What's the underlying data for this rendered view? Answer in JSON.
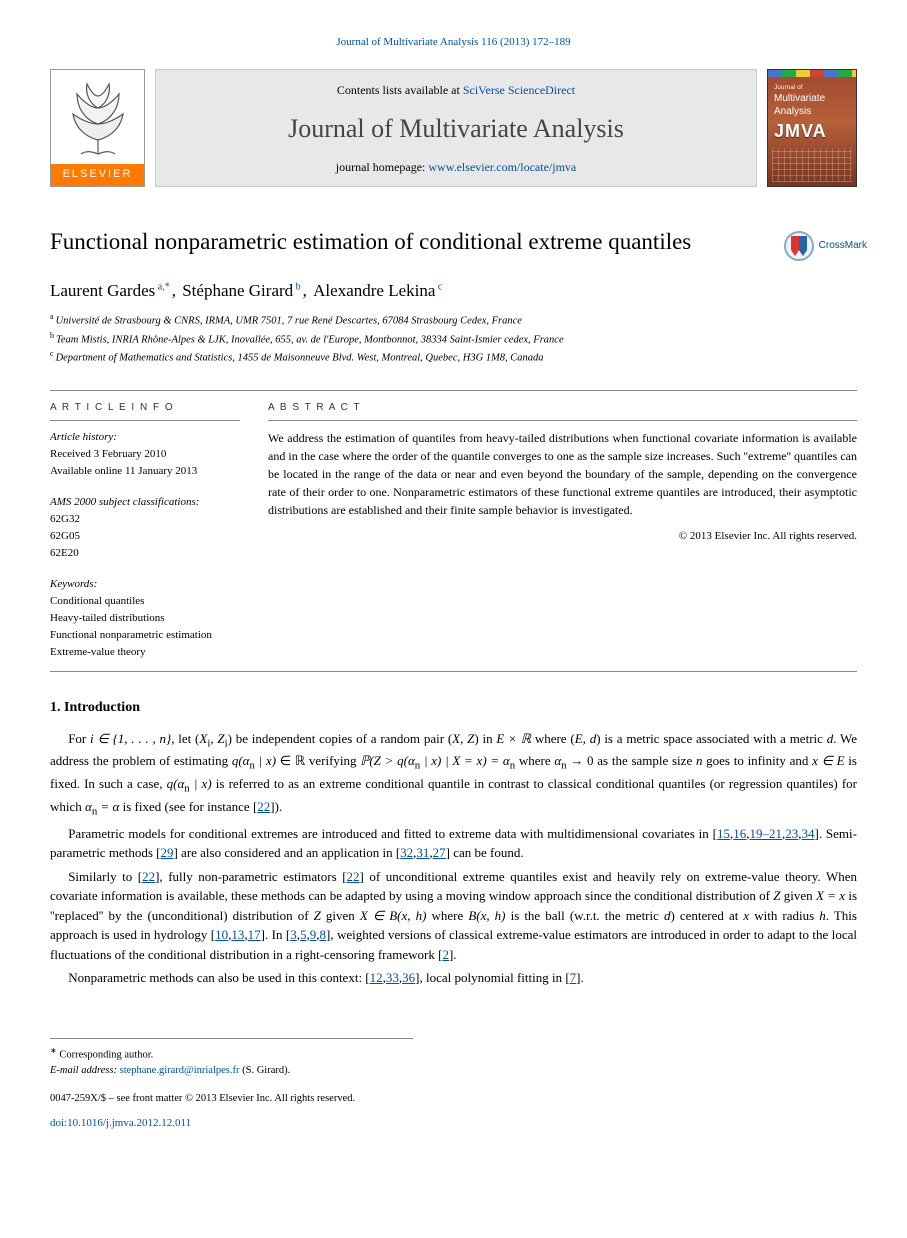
{
  "journal_ref": {
    "prefix": "",
    "link_text": "Journal of Multivariate Analysis 116 (2013) 172–189"
  },
  "header": {
    "contents_prefix": "Contents lists available at ",
    "contents_link": "SciVerse ScienceDirect",
    "journal_title": "Journal of Multivariate Analysis",
    "homepage_prefix": "journal homepage: ",
    "homepage_link": "www.elsevier.com/locate/jmva",
    "elsevier_label": "ELSEVIER",
    "cover_small": "Journal of",
    "cover_line1": "Multivariate",
    "cover_line2": "Analysis",
    "cover_abbrev": "JMVA"
  },
  "crossmark_label": "CrossMark",
  "title": "Functional nonparametric estimation of conditional extreme quantiles",
  "authors": [
    {
      "name": "Laurent Gardes",
      "affs": "a,*"
    },
    {
      "name": "Stéphane Girard",
      "affs": "b"
    },
    {
      "name": "Alexandre Lekina",
      "affs": "c"
    }
  ],
  "affiliations": [
    {
      "lbl": "a",
      "text": "Université de Strasbourg & CNRS, IRMA, UMR 7501, 7 rue René Descartes, 67084 Strasbourg Cedex, France"
    },
    {
      "lbl": "b",
      "text": "Team Mistis, INRIA Rhône-Alpes & LJK, Inovallée, 655, av. de l'Europe, Montbonnot, 38334 Saint-Ismier cedex, France"
    },
    {
      "lbl": "c",
      "text": "Department of Mathematics and Statistics, 1455 de Maisonneuve Blvd. West, Montreal, Quebec, H3G 1M8, Canada"
    }
  ],
  "info": {
    "article_info_label": "A R T I C L E   I N F O",
    "history_label": "Article history:",
    "history": [
      "Received 3 February 2010",
      "Available online 11 January 2013"
    ],
    "ams_label": "AMS 2000 subject classifications:",
    "ams": [
      "62G32",
      "62G05",
      "62E20"
    ],
    "keywords_label": "Keywords:",
    "keywords": [
      "Conditional quantiles",
      "Heavy-tailed distributions",
      "Functional nonparametric estimation",
      "Extreme-value theory"
    ]
  },
  "abstract": {
    "label": "A B S T R A C T",
    "text": "We address the estimation of quantiles from heavy-tailed distributions when functional covariate information is available and in the case where the order of the quantile converges to one as the sample size increases. Such ''extreme'' quantiles can be located in the range of the data or near and even beyond the boundary of the sample, depending on the convergence rate of their order to one. Nonparametric estimators of these functional extreme quantiles are introduced, their asymptotic distributions are established and their finite sample behavior is investigated.",
    "copyright": "© 2013 Elsevier Inc. All rights reserved."
  },
  "section1": {
    "heading": "1. Introduction",
    "paragraphs": [
      {
        "segments": [
          {
            "t": "For "
          },
          {
            "t": "i ∈ {1, . . . , n}",
            "math": true
          },
          {
            "t": ", let ("
          },
          {
            "t": "X",
            "math": true
          },
          {
            "t": "i",
            "sub": true
          },
          {
            "t": ", "
          },
          {
            "t": "Z",
            "math": true
          },
          {
            "t": "i",
            "sub": true
          },
          {
            "t": ") be independent copies of a random pair ("
          },
          {
            "t": "X, Z",
            "math": true
          },
          {
            "t": ") in "
          },
          {
            "t": "E × ℝ",
            "math": true
          },
          {
            "t": " where ("
          },
          {
            "t": "E, d",
            "math": true
          },
          {
            "t": ") is a metric space associated with a metric "
          },
          {
            "t": "d",
            "math": true
          },
          {
            "t": ". We address the problem of estimating "
          },
          {
            "t": "q(α",
            "math": true
          },
          {
            "t": "n",
            "sub": true
          },
          {
            "t": " | x)",
            "math": true
          },
          {
            "t": " ∈ ℝ verifying "
          },
          {
            "t": "ℙ(Z > q(α",
            "math": true
          },
          {
            "t": "n",
            "sub": true
          },
          {
            "t": " | x) | X = x) = α",
            "math": true
          },
          {
            "t": "n",
            "sub": true
          },
          {
            "t": " where "
          },
          {
            "t": "α",
            "math": true
          },
          {
            "t": "n",
            "sub": true
          },
          {
            "t": " → 0 as the sample size "
          },
          {
            "t": "n",
            "math": true
          },
          {
            "t": " goes to infinity and "
          },
          {
            "t": "x ∈ E",
            "math": true
          },
          {
            "t": " is fixed. In such a case, "
          },
          {
            "t": "q(α",
            "math": true
          },
          {
            "t": "n",
            "sub": true
          },
          {
            "t": " | x)",
            "math": true
          },
          {
            "t": " is referred to as an extreme conditional quantile in contrast to classical conditional quantiles (or regression quantiles) for which "
          },
          {
            "t": "α",
            "math": true
          },
          {
            "t": "n",
            "sub": true
          },
          {
            "t": " = α",
            "math": true
          },
          {
            "t": " is fixed (see for instance [",
            "post": ""
          },
          {
            "t": "22",
            "cite": true
          },
          {
            "t": "])."
          }
        ]
      },
      {
        "segments": [
          {
            "t": "Parametric models for conditional extremes are introduced and fitted to extreme data with multidimensional covariates in ["
          },
          {
            "t": "15",
            "cite": true
          },
          {
            "t": ","
          },
          {
            "t": "16",
            "cite": true
          },
          {
            "t": ","
          },
          {
            "t": "19–21",
            "cite": true
          },
          {
            "t": ","
          },
          {
            "t": "23",
            "cite": true
          },
          {
            "t": ","
          },
          {
            "t": "34",
            "cite": true
          },
          {
            "t": "]. Semi-parametric methods ["
          },
          {
            "t": "29",
            "cite": true
          },
          {
            "t": "] are also considered and an application in ["
          },
          {
            "t": "32",
            "cite": true
          },
          {
            "t": ","
          },
          {
            "t": "31",
            "cite": true
          },
          {
            "t": ","
          },
          {
            "t": "27",
            "cite": true
          },
          {
            "t": "] can be found."
          }
        ]
      },
      {
        "segments": [
          {
            "t": "Similarly to ["
          },
          {
            "t": "22",
            "cite": true
          },
          {
            "t": "], fully non-parametric estimators ["
          },
          {
            "t": "22",
            "cite": true
          },
          {
            "t": "] of unconditional extreme quantiles exist and heavily rely on extreme-value theory. When covariate information is available, these methods can be adapted by using a moving window approach since the conditional distribution of "
          },
          {
            "t": "Z",
            "math": true
          },
          {
            "t": " given "
          },
          {
            "t": "X = x",
            "math": true
          },
          {
            "t": " is ''replaced'' by the (unconditional) distribution of "
          },
          {
            "t": "Z",
            "math": true
          },
          {
            "t": " given "
          },
          {
            "t": "X ∈ B(x, h)",
            "math": true
          },
          {
            "t": " where "
          },
          {
            "t": "B(x, h)",
            "math": true
          },
          {
            "t": " is the ball (w.r.t. the metric "
          },
          {
            "t": "d",
            "math": true
          },
          {
            "t": ") centered at "
          },
          {
            "t": "x",
            "math": true
          },
          {
            "t": " with radius "
          },
          {
            "t": "h",
            "math": true
          },
          {
            "t": ". This approach is used in hydrology ["
          },
          {
            "t": "10",
            "cite": true
          },
          {
            "t": ","
          },
          {
            "t": "13",
            "cite": true
          },
          {
            "t": ","
          },
          {
            "t": "17",
            "cite": true
          },
          {
            "t": "]. In ["
          },
          {
            "t": "3",
            "cite": true
          },
          {
            "t": ","
          },
          {
            "t": "5",
            "cite": true
          },
          {
            "t": ","
          },
          {
            "t": "9",
            "cite": true
          },
          {
            "t": ","
          },
          {
            "t": "8",
            "cite": true
          },
          {
            "t": "], weighted versions of classical extreme-value estimators are introduced in order to adapt to the local fluctuations of the conditional distribution in a right-censoring framework ["
          },
          {
            "t": "2",
            "cite": true
          },
          {
            "t": "]."
          }
        ]
      },
      {
        "segments": [
          {
            "t": "Nonparametric methods can also be used in this context: ["
          },
          {
            "t": "12",
            "cite": true
          },
          {
            "t": ","
          },
          {
            "t": "33",
            "cite": true
          },
          {
            "t": ","
          },
          {
            "t": "36",
            "cite": true
          },
          {
            "t": "], local polynomial fitting in ["
          },
          {
            "t": "7",
            "cite": true
          },
          {
            "t": "]."
          }
        ]
      }
    ]
  },
  "footnotes": {
    "corr": "Corresponding author.",
    "email_label": "E-mail address:",
    "email": "stephane.girard@inrialpes.fr",
    "email_who": "(S. Girard)."
  },
  "footer": {
    "line1": "0047-259X/$ – see front matter © 2013 Elsevier Inc. All rights reserved.",
    "doi_link": "doi:10.1016/j.jmva.2012.12.011"
  },
  "colors": {
    "link": "#0050a0",
    "elsevier_orange": "#ff7a00",
    "banner_bg": "#e8e8e8",
    "cover_bg_top": "#a0492e",
    "cover_bg_bottom": "#7a3520"
  }
}
